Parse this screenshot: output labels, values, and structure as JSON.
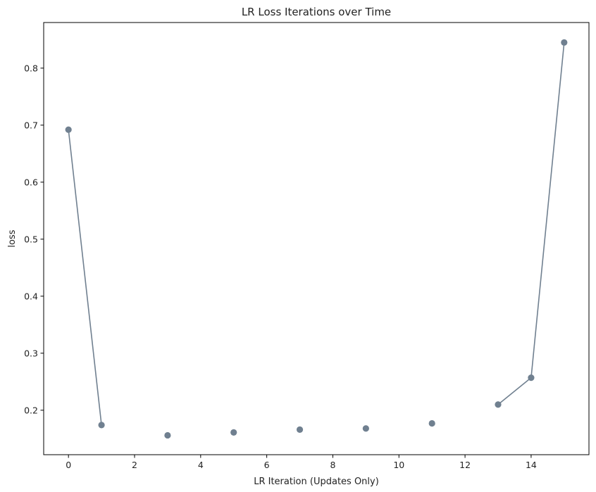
{
  "chart_data": {
    "type": "line",
    "title": "LR Loss Iterations over Time",
    "xlabel": "LR Iteration (Updates Only)",
    "ylabel": "loss",
    "xlim": [
      -0.75,
      15.75
    ],
    "ylim": [
      0.122,
      0.88
    ],
    "x_ticks": [
      0,
      2,
      4,
      6,
      8,
      10,
      12,
      14
    ],
    "y_ticks": [
      0.2,
      0.3,
      0.4,
      0.5,
      0.6,
      0.7,
      0.8
    ],
    "grid": false,
    "series": [
      {
        "color": "#708090",
        "marker": "circle",
        "points": [
          {
            "x": 0,
            "y": 0.692
          },
          {
            "x": 1,
            "y": 0.174
          },
          {
            "x": 3,
            "y": 0.156
          },
          {
            "x": 5,
            "y": 0.161
          },
          {
            "x": 7,
            "y": 0.166
          },
          {
            "x": 9,
            "y": 0.168
          },
          {
            "x": 11,
            "y": 0.177
          },
          {
            "x": 13,
            "y": 0.21
          },
          {
            "x": 14,
            "y": 0.257
          },
          {
            "x": 15,
            "y": 0.845
          }
        ],
        "line_segments": [
          [
            0,
            1
          ],
          [
            7,
            8
          ],
          [
            8,
            9
          ]
        ]
      }
    ]
  }
}
